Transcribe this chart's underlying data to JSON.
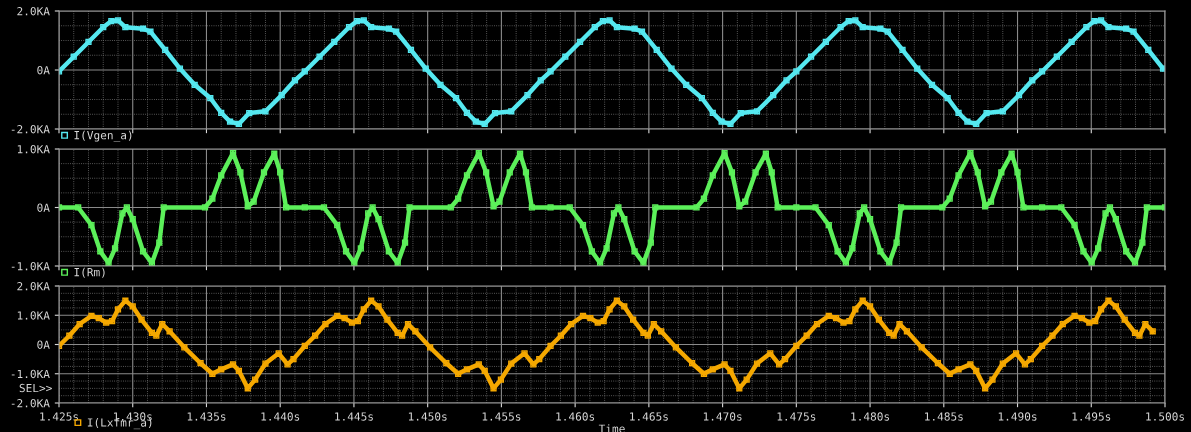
{
  "chart_data": [
    {
      "type": "line",
      "xlim": [
        1.425,
        1.5
      ],
      "ylim": [
        -2,
        2
      ],
      "yticks": [
        {
          "value": 2,
          "label": "2.0KA"
        },
        {
          "value": 0,
          "label": "0A"
        },
        {
          "value": -2,
          "label": "-2.0KA"
        }
      ],
      "xticks": [
        1.425,
        1.43,
        1.435,
        1.44,
        1.445,
        1.45,
        1.455,
        1.46,
        1.465,
        1.47,
        1.475,
        1.48,
        1.485,
        1.49,
        1.495,
        1.5
      ],
      "tick_labels": "y",
      "grid": true,
      "legend": "bottom left",
      "marker": "square",
      "series": [
        {
          "name": "I(Vgen_a)",
          "color": "#55e8f0",
          "x": [
            1.425,
            1.426,
            1.427,
            1.428,
            1.42855,
            1.429,
            1.4295,
            1.4307,
            1.4312,
            1.4322,
            1.4332,
            1.4342,
            1.43526,
            1.436,
            1.4366,
            1.4372,
            1.4379,
            1.439,
            1.4401,
            1.441,
            1.441667,
            1.442667,
            1.443667,
            1.444667,
            1.445217,
            1.445667,
            1.446167,
            1.447367,
            1.447867,
            1.448867,
            1.449867,
            1.450867,
            1.451927,
            1.452667,
            1.453267,
            1.453867,
            1.454567,
            1.455667,
            1.456767,
            1.457667,
            1.458333,
            1.459333,
            1.460333,
            1.461333,
            1.461883,
            1.462333,
            1.462833,
            1.464033,
            1.464533,
            1.465533,
            1.466533,
            1.467533,
            1.468593,
            1.469333,
            1.469933,
            1.470533,
            1.471233,
            1.472333,
            1.473433,
            1.474333,
            1.475,
            1.476,
            1.477,
            1.478,
            1.47855,
            1.479,
            1.4795,
            1.4807,
            1.4812,
            1.4822,
            1.4832,
            1.4842,
            1.48526,
            1.486,
            1.4866,
            1.4872,
            1.4879,
            1.489,
            1.4901,
            1.491,
            1.491667,
            1.492667,
            1.493667,
            1.494667,
            1.495217,
            1.495667,
            1.496167,
            1.497367,
            1.497867,
            1.498867,
            1.499867
          ],
          "values": [
            -0.05,
            0.45,
            0.95,
            1.45,
            1.66,
            1.68,
            1.45,
            1.4,
            1.3,
            0.68,
            0.05,
            -0.5,
            -0.95,
            -1.45,
            -1.75,
            -1.83,
            -1.46,
            -1.4,
            -0.85,
            -0.35,
            -0.05,
            0.45,
            0.95,
            1.45,
            1.66,
            1.68,
            1.45,
            1.4,
            1.3,
            0.68,
            0.05,
            -0.5,
            -0.95,
            -1.45,
            -1.75,
            -1.83,
            -1.46,
            -1.4,
            -0.85,
            -0.35,
            -0.05,
            0.45,
            0.95,
            1.45,
            1.66,
            1.68,
            1.45,
            1.4,
            1.3,
            0.68,
            0.05,
            -0.5,
            -0.95,
            -1.45,
            -1.75,
            -1.83,
            -1.46,
            -1.4,
            -0.85,
            -0.35,
            -0.05,
            0.45,
            0.95,
            1.45,
            1.66,
            1.68,
            1.45,
            1.4,
            1.3,
            0.68,
            0.05,
            -0.5,
            -0.95,
            -1.45,
            -1.75,
            -1.83,
            -1.46,
            -1.4,
            -0.85,
            -0.35,
            -0.05,
            0.45,
            0.95,
            1.45,
            1.66,
            1.68,
            1.45,
            1.4,
            1.3,
            0.68,
            0.05
          ]
        }
      ]
    },
    {
      "type": "line",
      "xlim": [
        1.425,
        1.5
      ],
      "ylim": [
        -1,
        1
      ],
      "yticks": [
        {
          "value": 1,
          "label": "1.0KA"
        },
        {
          "value": 0,
          "label": "0A"
        },
        {
          "value": -1,
          "label": "-1.0KA"
        }
      ],
      "xticks": [
        1.425,
        1.43,
        1.435,
        1.44,
        1.445,
        1.45,
        1.455,
        1.46,
        1.465,
        1.47,
        1.475,
        1.48,
        1.485,
        1.49,
        1.495,
        1.5
      ],
      "tick_labels": "y",
      "grid": true,
      "legend": "bottom left",
      "marker": "square",
      "series": [
        {
          "name": "I(Rm)",
          "color": "#5cf05a",
          "x": [
            1.425,
            1.4263,
            1.4272,
            1.4278,
            1.42836,
            1.4288,
            1.4293,
            1.4296,
            1.43,
            1.4307,
            1.4313,
            1.4318,
            1.4321,
            1.4349,
            1.4354,
            1.436,
            1.4368,
            1.4373,
            1.4378,
            1.4382,
            1.4389,
            1.4396,
            1.44,
            1.4404,
            1.441667,
            1.442967,
            1.443867,
            1.444467,
            1.445027,
            1.445467,
            1.445967,
            1.446267,
            1.446667,
            1.447367,
            1.447967,
            1.448467,
            1.448767,
            1.451567,
            1.452067,
            1.452667,
            1.453467,
            1.453967,
            1.454467,
            1.454867,
            1.455567,
            1.456267,
            1.456667,
            1.457067,
            1.458333,
            1.459633,
            1.460533,
            1.461133,
            1.461693,
            1.462133,
            1.462633,
            1.462933,
            1.463333,
            1.464033,
            1.464633,
            1.465133,
            1.465433,
            1.468233,
            1.468733,
            1.469333,
            1.470133,
            1.470633,
            1.471133,
            1.471533,
            1.472233,
            1.472933,
            1.473333,
            1.473733,
            1.475,
            1.4763,
            1.4772,
            1.4778,
            1.47836,
            1.4788,
            1.4793,
            1.4796,
            1.48,
            1.4807,
            1.4813,
            1.4818,
            1.4821,
            1.4849,
            1.4854,
            1.486,
            1.4868,
            1.4873,
            1.4878,
            1.4882,
            1.4889,
            1.4896,
            1.49,
            1.4904,
            1.491667,
            1.492967,
            1.493867,
            1.494467,
            1.495027,
            1.495467,
            1.495967,
            1.496267,
            1.496667,
            1.497367,
            1.497967,
            1.498467,
            1.498767,
            1.5
          ],
          "values": [
            0,
            0,
            -0.3,
            -0.75,
            -0.95,
            -0.7,
            -0.1,
            0,
            -0.2,
            -0.75,
            -0.95,
            -0.6,
            0,
            0,
            0.15,
            0.55,
            0.93,
            0.6,
            0.02,
            0.1,
            0.6,
            0.92,
            0.6,
            0,
            0,
            0,
            -0.3,
            -0.75,
            -0.95,
            -0.7,
            -0.1,
            0,
            -0.2,
            -0.75,
            -0.95,
            -0.6,
            0,
            0,
            0.15,
            0.55,
            0.93,
            0.6,
            0.02,
            0.1,
            0.6,
            0.92,
            0.6,
            0,
            0,
            0,
            -0.3,
            -0.75,
            -0.95,
            -0.7,
            -0.1,
            0,
            -0.2,
            -0.75,
            -0.95,
            -0.6,
            0,
            0,
            0.15,
            0.55,
            0.93,
            0.6,
            0.02,
            0.1,
            0.6,
            0.92,
            0.6,
            0,
            0,
            0,
            -0.3,
            -0.75,
            -0.95,
            -0.7,
            -0.1,
            0,
            -0.2,
            -0.75,
            -0.95,
            -0.6,
            0,
            0,
            0.15,
            0.55,
            0.93,
            0.6,
            0.02,
            0.1,
            0.6,
            0.92,
            0.6,
            0,
            0,
            0,
            -0.3,
            -0.75,
            -0.95,
            -0.7,
            -0.1,
            0,
            -0.2,
            -0.75,
            -0.95,
            -0.6,
            0,
            0
          ]
        }
      ]
    },
    {
      "type": "line",
      "xlim": [
        1.425,
        1.5
      ],
      "ylim": [
        -2,
        2
      ],
      "yticks": [
        {
          "value": 2,
          "label": "2.0KA"
        },
        {
          "value": 1,
          "label": "1.0KA"
        },
        {
          "value": 0,
          "label": "0A"
        },
        {
          "value": -1,
          "label": "-1.0KA"
        },
        {
          "value": -2,
          "label": "-2.0KA"
        }
      ],
      "xticks": [
        {
          "value": 1.425,
          "label": "1.425s"
        },
        {
          "value": 1.43,
          "label": "1.430s"
        },
        {
          "value": 1.435,
          "label": "1.435s"
        },
        {
          "value": 1.44,
          "label": "1.440s"
        },
        {
          "value": 1.445,
          "label": "1.445s"
        },
        {
          "value": 1.45,
          "label": "1.450s"
        },
        {
          "value": 1.455,
          "label": "1.455s"
        },
        {
          "value": 1.46,
          "label": "1.460s"
        },
        {
          "value": 1.465,
          "label": "1.465s"
        },
        {
          "value": 1.47,
          "label": "1.470s"
        },
        {
          "value": 1.475,
          "label": "1.475s"
        },
        {
          "value": 1.48,
          "label": "1.480s"
        },
        {
          "value": 1.485,
          "label": "1.485s"
        },
        {
          "value": 1.49,
          "label": "1.490s"
        },
        {
          "value": 1.495,
          "label": "1.495s"
        },
        {
          "value": 1.5,
          "label": "1.500s"
        }
      ],
      "xlabel": "Time",
      "annotations": [
        "SEL>>"
      ],
      "grid": true,
      "legend": "bottom left",
      "marker": "square",
      "series": [
        {
          "name": "I(Lxfmr_a)",
          "color": "#f5a800",
          "x": [
            1.425,
            1.4257,
            1.4264,
            1.4272,
            1.4277,
            1.4282,
            1.4286,
            1.429,
            1.4295,
            1.43,
            1.4306,
            1.4313,
            1.4316,
            1.432,
            1.4325,
            1.4335,
            1.4346,
            1.4354,
            1.436,
            1.4368,
            1.4372,
            1.4378,
            1.4383,
            1.439,
            1.4399,
            1.4405,
            1.4409,
            1.441667,
            1.442367,
            1.443067,
            1.443867,
            1.444367,
            1.444867,
            1.445267,
            1.445667,
            1.446167,
            1.446667,
            1.447267,
            1.447967,
            1.448267,
            1.448667,
            1.449167,
            1.450167,
            1.451267,
            1.452067,
            1.452667,
            1.453467,
            1.453867,
            1.454467,
            1.454967,
            1.455667,
            1.456567,
            1.457167,
            1.457567,
            1.458333,
            1.459033,
            1.459733,
            1.460533,
            1.461033,
            1.461533,
            1.461933,
            1.462333,
            1.462833,
            1.463333,
            1.463933,
            1.464633,
            1.464933,
            1.465333,
            1.465833,
            1.466833,
            1.467933,
            1.468733,
            1.469333,
            1.470133,
            1.470533,
            1.471133,
            1.471633,
            1.472333,
            1.473233,
            1.473833,
            1.474233,
            1.475,
            1.4757,
            1.4764,
            1.4772,
            1.4777,
            1.4782,
            1.4786,
            1.479,
            1.4795,
            1.48,
            1.4806,
            1.4813,
            1.4816,
            1.482,
            1.4825,
            1.4835,
            1.4846,
            1.4854,
            1.486,
            1.4868,
            1.4872,
            1.4878,
            1.4883,
            1.489,
            1.4899,
            1.4905,
            1.4909,
            1.491667,
            1.492367,
            1.493067,
            1.493867,
            1.494367,
            1.494867,
            1.495267,
            1.495667,
            1.496167,
            1.496667,
            1.497267,
            1.497967,
            1.498267,
            1.498667,
            1.499167
          ],
          "values": [
            -0.05,
            0.3,
            0.7,
            0.98,
            0.9,
            0.75,
            0.8,
            1.2,
            1.5,
            1.3,
            0.85,
            0.4,
            0.3,
            0.7,
            0.45,
            -0.1,
            -0.64,
            -1.0,
            -0.85,
            -0.68,
            -0.9,
            -1.5,
            -1.2,
            -0.65,
            -0.3,
            -0.68,
            -0.5,
            -0.05,
            0.3,
            0.7,
            0.98,
            0.9,
            0.75,
            0.8,
            1.2,
            1.5,
            1.3,
            0.85,
            0.4,
            0.3,
            0.7,
            0.45,
            -0.1,
            -0.64,
            -1.0,
            -0.85,
            -0.68,
            -0.9,
            -1.5,
            -1.2,
            -0.65,
            -0.3,
            -0.68,
            -0.5,
            -0.05,
            0.3,
            0.7,
            0.98,
            0.9,
            0.75,
            0.8,
            1.2,
            1.5,
            1.3,
            0.85,
            0.4,
            0.3,
            0.7,
            0.45,
            -0.1,
            -0.64,
            -1.0,
            -0.85,
            -0.68,
            -0.9,
            -1.5,
            -1.2,
            -0.65,
            -0.3,
            -0.68,
            -0.5,
            -0.05,
            0.3,
            0.7,
            0.98,
            0.9,
            0.75,
            0.8,
            1.2,
            1.5,
            1.3,
            0.85,
            0.4,
            0.3,
            0.7,
            0.45,
            -0.1,
            -0.64,
            -1.0,
            -0.85,
            -0.68,
            -0.9,
            -1.5,
            -1.2,
            -0.65,
            -0.3,
            -0.68,
            -0.5,
            -0.05,
            0.3,
            0.7,
            0.98,
            0.9,
            0.75,
            0.8,
            1.2,
            1.5,
            1.3,
            0.85,
            0.4,
            0.3,
            0.7,
            0.45
          ]
        }
      ]
    }
  ]
}
